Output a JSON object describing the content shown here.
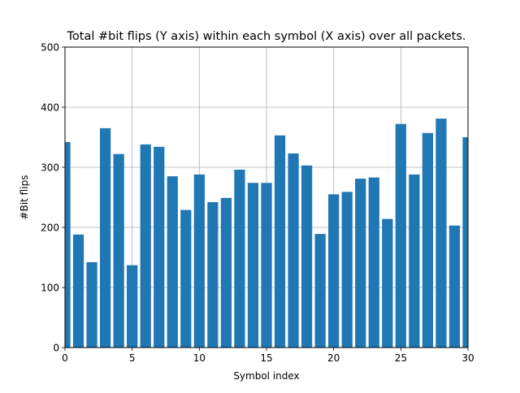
{
  "chart_data": {
    "type": "bar",
    "title": "Total #bit flips (Y axis) within each symbol (X axis) over all packets.",
    "xlabel": "Symbol index",
    "ylabel": "#Bit flips",
    "xlim": [
      0,
      30
    ],
    "ylim": [
      0,
      500
    ],
    "xticks": [
      0,
      5,
      10,
      15,
      20,
      25,
      30
    ],
    "yticks": [
      0,
      100,
      200,
      300,
      400,
      500
    ],
    "grid": true,
    "bar_color": "#1f77b4",
    "bar_width": 0.8,
    "x": [
      0,
      1,
      2,
      3,
      4,
      5,
      6,
      7,
      8,
      9,
      10,
      11,
      12,
      13,
      14,
      15,
      16,
      17,
      18,
      19,
      20,
      21,
      22,
      23,
      24,
      25,
      26,
      27,
      28,
      29,
      30
    ],
    "values": [
      342,
      188,
      142,
      365,
      322,
      137,
      338,
      334,
      285,
      229,
      288,
      242,
      249,
      296,
      274,
      274,
      353,
      323,
      303,
      189,
      255,
      259,
      281,
      283,
      214,
      372,
      288,
      357,
      381,
      203,
      350
    ]
  }
}
